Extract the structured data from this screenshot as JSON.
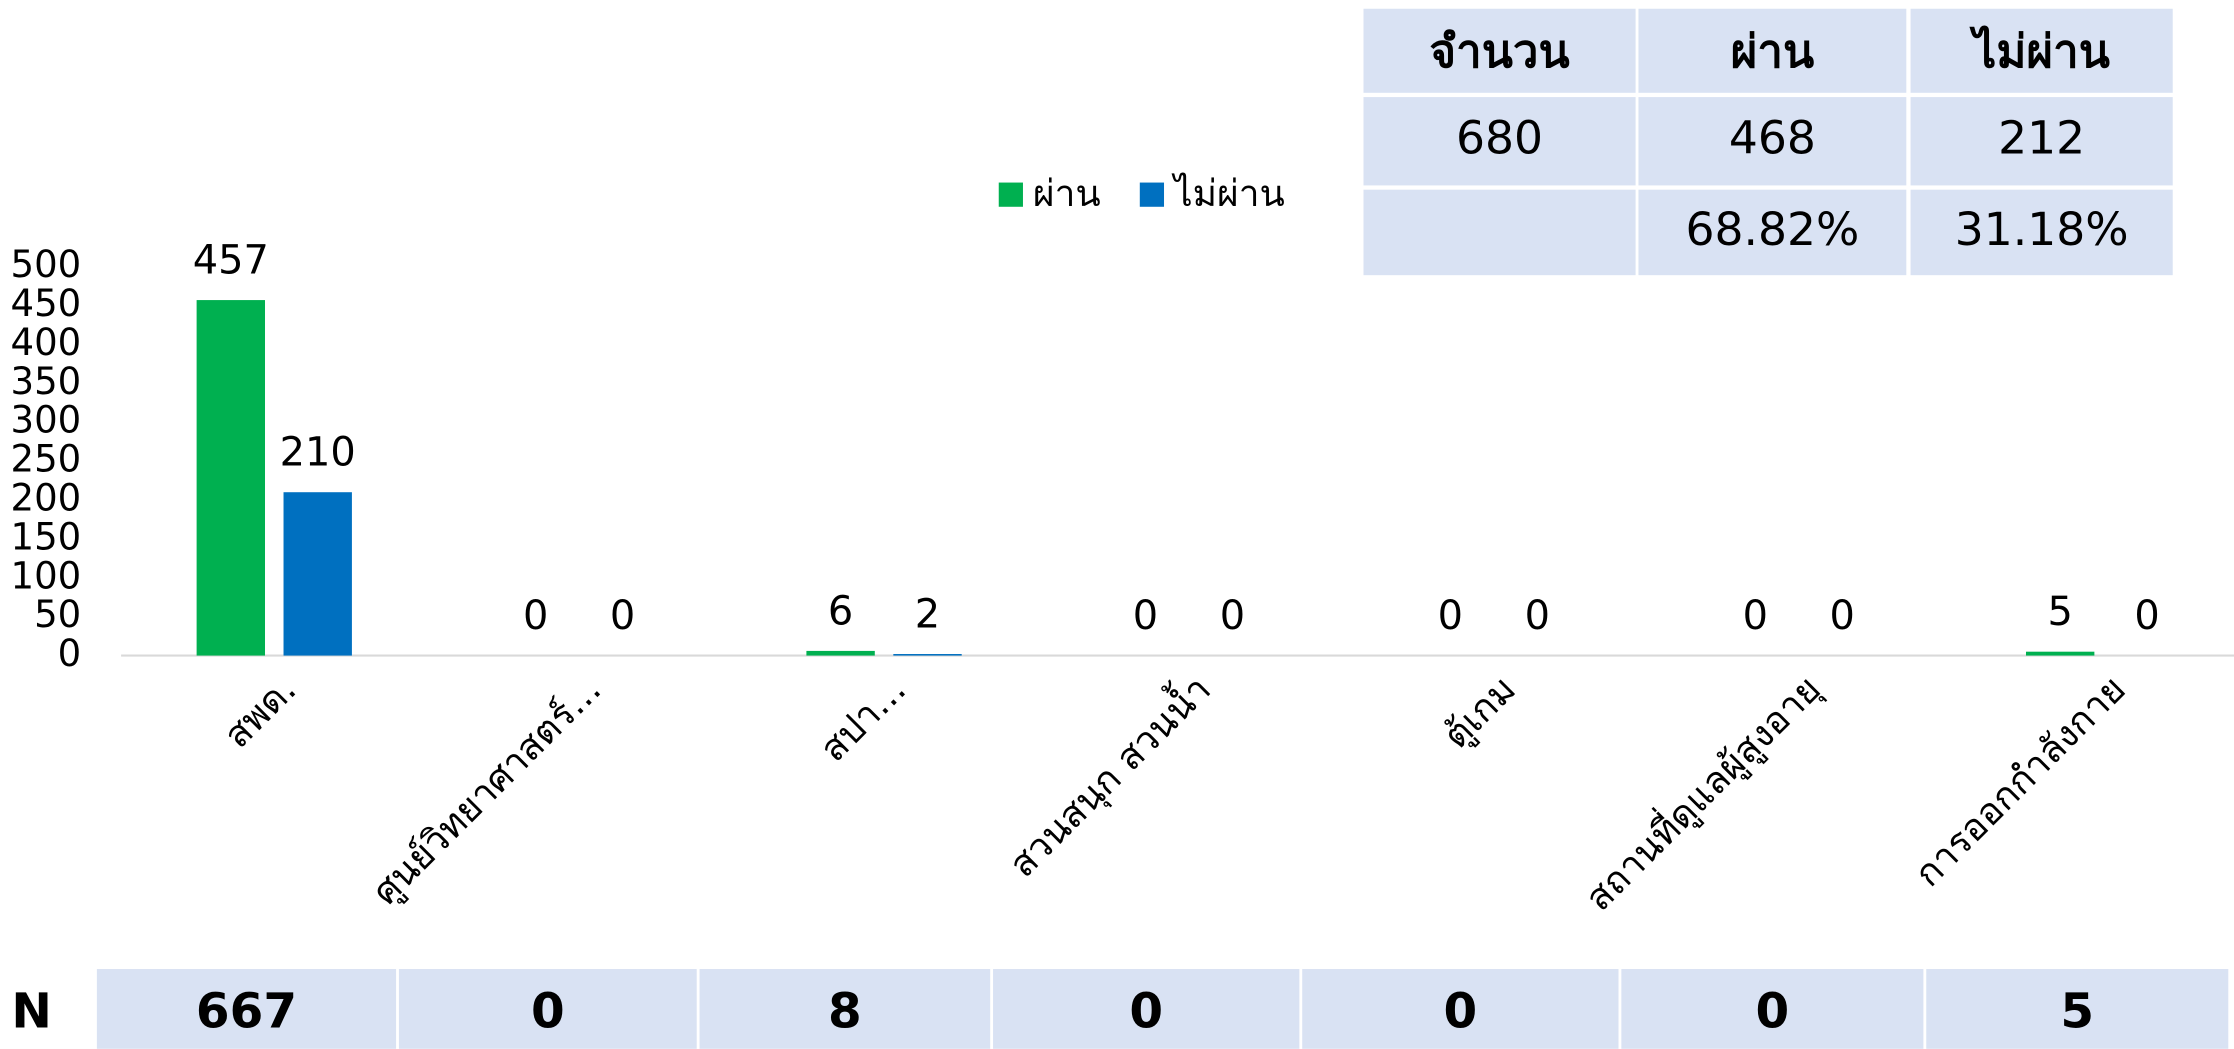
{
  "chart_data": {
    "type": "bar",
    "categories": [
      "สพด.",
      "ศูนย์วิทยาศาสตร์...",
      "สปา...",
      "สวนสนุก สวนน้ำ",
      "ตู้เกม",
      "สถานที่ดูแลผู้สูงอายุ",
      "การออกกำลังกาย"
    ],
    "series": [
      {
        "name": "ผ่าน",
        "color": "#00b050",
        "values": [
          457,
          0,
          6,
          0,
          0,
          0,
          5
        ]
      },
      {
        "name": "ไม่ผ่าน",
        "color": "#0070c0",
        "values": [
          210,
          0,
          2,
          0,
          0,
          0,
          0
        ]
      }
    ],
    "ylim": [
      0,
      500
    ],
    "yticks": [
      0,
      50,
      100,
      150,
      200,
      250,
      300,
      350,
      400,
      450,
      500
    ],
    "grid": false,
    "legend": "top"
  },
  "summary_table": {
    "header": [
      "จำนวน",
      "ผ่าน",
      "ไม่ผ่าน"
    ],
    "rows": [
      [
        "680",
        "468",
        "212"
      ],
      [
        "68.82%",
        "31.18%"
      ]
    ]
  },
  "n_row": {
    "label": "N",
    "values": [
      "667",
      "0",
      "8",
      "0",
      "0",
      "0",
      "5"
    ]
  }
}
